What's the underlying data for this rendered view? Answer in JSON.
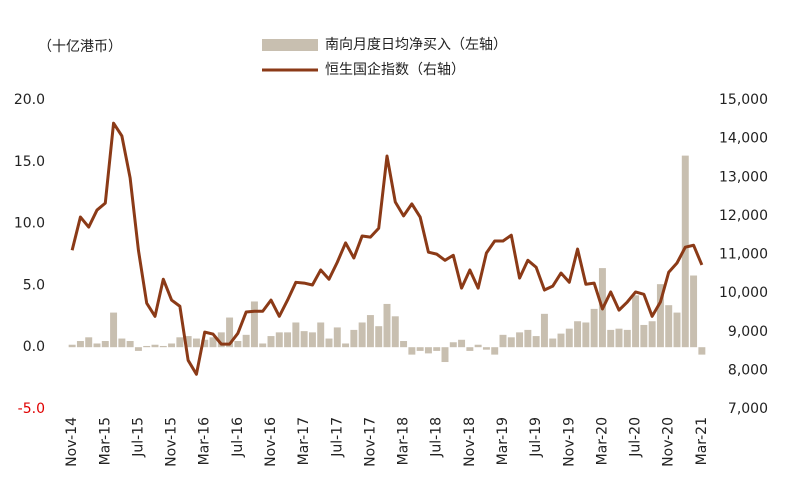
{
  "chart_data": {
    "type": "bar-line",
    "unit_label": "（十亿港币）",
    "categories": [
      "Nov-14",
      null,
      null,
      null,
      "Mar-15",
      null,
      null,
      null,
      "Jul-15",
      null,
      null,
      null,
      "Nov-15",
      null,
      null,
      null,
      "Mar-16",
      null,
      null,
      null,
      "Jul-16",
      null,
      null,
      null,
      "Nov-16",
      null,
      null,
      null,
      "Mar-17",
      null,
      null,
      null,
      "Jul-17",
      null,
      null,
      null,
      "Nov-17",
      null,
      null,
      null,
      "Mar-18",
      null,
      null,
      null,
      "Jul-18",
      null,
      null,
      null,
      "Nov-18",
      null,
      null,
      null,
      "Mar-19",
      null,
      null,
      null,
      "Jul-19",
      null,
      null,
      null,
      "Nov-19",
      null,
      null,
      null,
      "Mar-20",
      null,
      null,
      null,
      "Jul-20",
      null,
      null,
      null,
      "Nov-20",
      null,
      null,
      null,
      "Mar-21"
    ],
    "series": [
      {
        "name": "南向月度日均净买入（左轴）",
        "type": "bar",
        "axis": "y",
        "color": "#c8bfb0",
        "values": [
          0.2,
          0.5,
          0.8,
          0.3,
          0.5,
          2.8,
          0.7,
          0.5,
          -0.3,
          0.1,
          0.2,
          0.1,
          0.3,
          0.8,
          0.9,
          0.7,
          0.6,
          0.8,
          1.2,
          2.4,
          0.5,
          1.0,
          3.7,
          0.3,
          0.9,
          1.2,
          1.2,
          2.0,
          1.3,
          1.2,
          2.0,
          0.7,
          1.6,
          0.3,
          1.4,
          2.0,
          2.6,
          1.7,
          3.5,
          2.5,
          0.5,
          -0.6,
          -0.3,
          -0.5,
          -0.3,
          -1.2,
          0.4,
          0.6,
          -0.3,
          0.2,
          -0.2,
          -0.6,
          1.0,
          0.8,
          1.2,
          1.4,
          0.9,
          2.7,
          0.7,
          1.1,
          1.5,
          2.1,
          2.0,
          3.1,
          6.4,
          1.4,
          1.5,
          1.4,
          4.2,
          1.8,
          2.1,
          5.1,
          3.4,
          2.8,
          15.5,
          5.8,
          -0.6
        ]
      },
      {
        "name": "恒生国企指数（右轴）",
        "type": "line",
        "axis": "y2",
        "color": "#8b3a17",
        "values": [
          11110,
          11970,
          11710,
          12150,
          12330,
          14400,
          14070,
          12980,
          11110,
          9740,
          9400,
          10360,
          9820,
          9660,
          8260,
          7900,
          8990,
          8940,
          8680,
          8680,
          8960,
          9510,
          9530,
          9530,
          9820,
          9400,
          9820,
          10280,
          10260,
          10210,
          10600,
          10360,
          10800,
          11300,
          10910,
          11480,
          11450,
          11680,
          13550,
          12360,
          12000,
          12310,
          11970,
          11060,
          11010,
          10850,
          10980,
          10130,
          10600,
          10130,
          11040,
          11350,
          11350,
          11500,
          10390,
          10850,
          10670,
          10080,
          10180,
          10520,
          10280,
          11140,
          10230,
          10260,
          9590,
          10030,
          9560,
          9770,
          10030,
          9970,
          9400,
          9770,
          10540,
          10780,
          11190,
          11240,
          10730
        ]
      }
    ],
    "ylim": [
      -5,
      20
    ],
    "yticks": [
      {
        "value": -5,
        "label": "-5.0"
      },
      {
        "value": 0,
        "label": "0.0"
      },
      {
        "value": 5,
        "label": "5.0"
      },
      {
        "value": 10,
        "label": "10.0"
      },
      {
        "value": 15,
        "label": "15.0"
      },
      {
        "value": 20,
        "label": "20.0"
      }
    ],
    "y2lim": [
      7000,
      15000
    ],
    "y2ticks": [
      {
        "value": 7000,
        "label": "7,000"
      },
      {
        "value": 8000,
        "label": "8,000"
      },
      {
        "value": 9000,
        "label": "9,000"
      },
      {
        "value": 10000,
        "label": "10,000"
      },
      {
        "value": 11000,
        "label": "11,000"
      },
      {
        "value": 12000,
        "label": "12,000"
      },
      {
        "value": 13000,
        "label": "13,000"
      },
      {
        "value": 14000,
        "label": "14,000"
      },
      {
        "value": 15000,
        "label": "15,000"
      }
    ],
    "negative_tick_color": "#e00000",
    "grid": false
  }
}
